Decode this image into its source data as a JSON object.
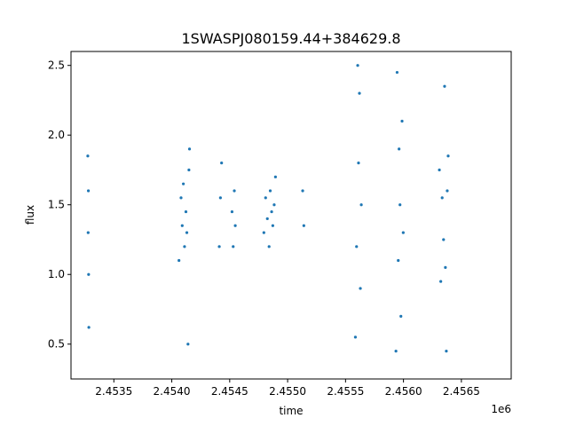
{
  "chart_data": {
    "type": "scatter",
    "title": "1SWASPJ080159.44+384629.8",
    "xlabel": "time",
    "ylabel": "flux",
    "x_offset_label": "1e6",
    "xlim": [
      2453130,
      2456930
    ],
    "ylim": [
      0.25,
      2.6
    ],
    "x_ticks": [
      2.4535,
      2.454,
      2.4545,
      2.455,
      2.4555,
      2.456,
      2.4565
    ],
    "x_tick_labels": [
      "2.4535",
      "2.4540",
      "2.4545",
      "2.4550",
      "2.4555",
      "2.4560",
      "2.4565"
    ],
    "y_ticks": [
      0.5,
      1.0,
      1.5,
      2.0,
      2.5
    ],
    "y_tick_labels": [
      "0.5",
      "1.0",
      "1.5",
      "2.0",
      "2.5"
    ],
    "grid": false,
    "marker_color": "#1f77b4",
    "series": [
      {
        "x": [
          2453275,
          2453278,
          2453280,
          2453282,
          2453284,
          2454062,
          2454080,
          2454090,
          2454100,
          2454110,
          2454122,
          2454130,
          2454140,
          2454148,
          2454153,
          2454410,
          2454420,
          2454430,
          2454520,
          2454530,
          2454540,
          2454548,
          2454795,
          2454810,
          2454825,
          2454840,
          2454850,
          2454862,
          2454872,
          2454884,
          2454895,
          2455130,
          2455140,
          2455585,
          2455595,
          2455605,
          2455612,
          2455620,
          2455628,
          2455636,
          2455935,
          2455945,
          2455955,
          2455962,
          2455970,
          2455978,
          2455988,
          2455998,
          2456310,
          2456322,
          2456334,
          2456346,
          2456355,
          2456362,
          2456370,
          2456378,
          2456386
        ],
        "y": [
          1.85,
          1.3,
          1.6,
          1.0,
          0.62,
          1.1,
          1.55,
          1.35,
          1.65,
          1.2,
          1.45,
          1.3,
          0.5,
          1.75,
          1.9,
          1.2,
          1.55,
          1.8,
          1.45,
          1.2,
          1.6,
          1.35,
          1.3,
          1.55,
          1.4,
          1.2,
          1.6,
          1.45,
          1.35,
          1.5,
          1.7,
          1.6,
          1.35,
          0.55,
          1.2,
          2.5,
          1.8,
          2.3,
          0.9,
          1.5,
          0.45,
          2.45,
          1.1,
          1.9,
          1.5,
          0.7,
          2.1,
          1.3,
          1.75,
          0.95,
          1.55,
          1.25,
          2.35,
          1.05,
          0.45,
          1.6,
          1.85
        ]
      }
    ]
  }
}
